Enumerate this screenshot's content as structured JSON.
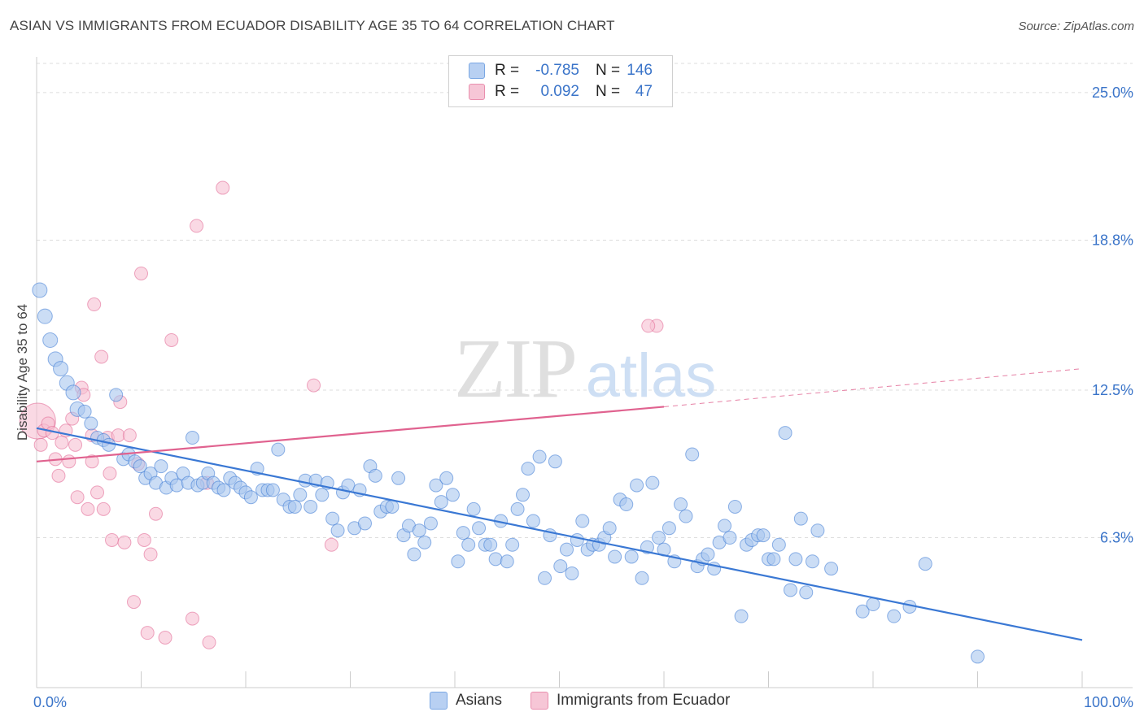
{
  "title": "ASIAN VS IMMIGRANTS FROM ECUADOR DISABILITY AGE 35 TO 64 CORRELATION CHART",
  "source": "Source: ZipAtlas.com",
  "watermark": {
    "zip": "ZIP",
    "atlas": "atlas"
  },
  "legend": {
    "r_label": "R =",
    "n_label": "N =",
    "rows": [
      {
        "name": "Asians",
        "r": "-0.785",
        "n": "146",
        "color": "#7aa7e3",
        "fill": "#b8d0f2"
      },
      {
        "name": "Immigrants from Ecuador",
        "r": "0.092",
        "n": "47",
        "color": "#e98fae",
        "fill": "#f6c6d6"
      }
    ]
  },
  "chart_data": {
    "type": "scatter",
    "title": "ASIAN VS IMMIGRANTS FROM ECUADOR DISABILITY AGE 35 TO 64 CORRELATION CHART",
    "xlabel": "",
    "ylabel": "Disability Age 35 to 64",
    "xlim": [
      0,
      100
    ],
    "ylim": [
      0,
      26.5
    ],
    "x_tick_labels": [
      {
        "value": 0,
        "label": "0.0%"
      },
      {
        "value": 100,
        "label": "100.0%"
      }
    ],
    "y_tick_labels": [
      {
        "value": 6.3,
        "label": "6.3%"
      },
      {
        "value": 12.5,
        "label": "12.5%"
      },
      {
        "value": 18.8,
        "label": "18.8%"
      },
      {
        "value": 25.0,
        "label": "25.0%"
      }
    ],
    "series": [
      {
        "name": "Asians",
        "color": "#3a78d4",
        "fill": "#a9c6ef",
        "trend": {
          "x": [
            0,
            100
          ],
          "y": [
            10.9,
            2.0
          ],
          "dashed_from": null
        },
        "points": [
          [
            0.3,
            16.7
          ],
          [
            0.8,
            15.6
          ],
          [
            1.3,
            14.6
          ],
          [
            1.8,
            13.8
          ],
          [
            2.3,
            13.4
          ],
          [
            2.9,
            12.8
          ],
          [
            3.5,
            12.4
          ],
          [
            3.9,
            11.7
          ],
          [
            4.6,
            11.6
          ],
          [
            5.2,
            11.1
          ],
          [
            5.8,
            10.5
          ],
          [
            6.4,
            10.4
          ],
          [
            6.9,
            10.2
          ],
          [
            7.6,
            12.3
          ],
          [
            8.3,
            9.6
          ],
          [
            8.8,
            9.8
          ],
          [
            9.4,
            9.5
          ],
          [
            9.9,
            9.3
          ],
          [
            10.4,
            8.8
          ],
          [
            10.9,
            9.0
          ],
          [
            11.4,
            8.6
          ],
          [
            11.9,
            9.3
          ],
          [
            12.4,
            8.4
          ],
          [
            12.9,
            8.8
          ],
          [
            13.4,
            8.5
          ],
          [
            14.0,
            9.0
          ],
          [
            14.5,
            8.6
          ],
          [
            14.9,
            10.5
          ],
          [
            15.4,
            8.5
          ],
          [
            15.9,
            8.6
          ],
          [
            16.4,
            9.0
          ],
          [
            16.9,
            8.6
          ],
          [
            17.4,
            8.4
          ],
          [
            17.9,
            8.3
          ],
          [
            18.5,
            8.8
          ],
          [
            19.0,
            8.6
          ],
          [
            19.5,
            8.4
          ],
          [
            20.0,
            8.2
          ],
          [
            20.5,
            8.0
          ],
          [
            21.1,
            9.2
          ],
          [
            21.6,
            8.3
          ],
          [
            22.1,
            8.3
          ],
          [
            22.6,
            8.3
          ],
          [
            23.1,
            10.0
          ],
          [
            23.6,
            7.9
          ],
          [
            24.2,
            7.6
          ],
          [
            24.7,
            7.6
          ],
          [
            25.2,
            8.1
          ],
          [
            25.7,
            8.7
          ],
          [
            26.2,
            7.6
          ],
          [
            26.7,
            8.7
          ],
          [
            27.3,
            8.1
          ],
          [
            27.8,
            8.6
          ],
          [
            28.3,
            7.1
          ],
          [
            28.8,
            6.6
          ],
          [
            29.3,
            8.2
          ],
          [
            29.8,
            8.5
          ],
          [
            30.4,
            6.7
          ],
          [
            30.9,
            8.3
          ],
          [
            31.4,
            6.9
          ],
          [
            31.9,
            9.3
          ],
          [
            32.4,
            8.9
          ],
          [
            32.9,
            7.4
          ],
          [
            33.5,
            7.6
          ],
          [
            34.0,
            7.6
          ],
          [
            34.6,
            8.8
          ],
          [
            35.1,
            6.4
          ],
          [
            35.6,
            6.8
          ],
          [
            36.1,
            5.6
          ],
          [
            36.6,
            6.6
          ],
          [
            37.1,
            6.1
          ],
          [
            37.7,
            6.9
          ],
          [
            38.2,
            8.5
          ],
          [
            38.7,
            7.8
          ],
          [
            39.2,
            8.8
          ],
          [
            39.8,
            8.1
          ],
          [
            40.3,
            5.3
          ],
          [
            40.8,
            6.5
          ],
          [
            41.3,
            6.0
          ],
          [
            41.8,
            7.5
          ],
          [
            42.3,
            6.7
          ],
          [
            42.9,
            6.0
          ],
          [
            43.4,
            6.0
          ],
          [
            43.9,
            5.4
          ],
          [
            44.4,
            7.0
          ],
          [
            45.0,
            5.3
          ],
          [
            45.5,
            6.0
          ],
          [
            46.0,
            7.5
          ],
          [
            46.5,
            8.1
          ],
          [
            47.0,
            9.2
          ],
          [
            47.5,
            7.0
          ],
          [
            48.1,
            9.7
          ],
          [
            48.6,
            4.6
          ],
          [
            49.1,
            6.4
          ],
          [
            49.6,
            9.5
          ],
          [
            50.1,
            5.1
          ],
          [
            50.7,
            5.8
          ],
          [
            51.2,
            4.8
          ],
          [
            51.7,
            6.2
          ],
          [
            52.2,
            7.0
          ],
          [
            52.7,
            5.8
          ],
          [
            53.2,
            6.0
          ],
          [
            53.8,
            6.0
          ],
          [
            54.3,
            6.3
          ],
          [
            54.8,
            6.7
          ],
          [
            55.3,
            5.5
          ],
          [
            55.8,
            7.9
          ],
          [
            56.4,
            7.7
          ],
          [
            56.9,
            5.5
          ],
          [
            57.4,
            8.5
          ],
          [
            57.9,
            4.6
          ],
          [
            58.4,
            5.9
          ],
          [
            58.9,
            8.6
          ],
          [
            59.5,
            6.3
          ],
          [
            60.0,
            5.8
          ],
          [
            60.5,
            6.7
          ],
          [
            61.0,
            5.3
          ],
          [
            61.6,
            7.7
          ],
          [
            62.1,
            7.2
          ],
          [
            62.7,
            9.8
          ],
          [
            63.2,
            5.1
          ],
          [
            63.7,
            5.4
          ],
          [
            64.2,
            5.6
          ],
          [
            64.8,
            5.0
          ],
          [
            65.3,
            6.1
          ],
          [
            65.8,
            6.8
          ],
          [
            66.3,
            6.3
          ],
          [
            66.8,
            7.6
          ],
          [
            67.4,
            3.0
          ],
          [
            67.9,
            6.0
          ],
          [
            68.4,
            6.2
          ],
          [
            69.0,
            6.4
          ],
          [
            69.5,
            6.4
          ],
          [
            70.0,
            5.4
          ],
          [
            70.5,
            5.4
          ],
          [
            71.0,
            6.0
          ],
          [
            71.6,
            10.7
          ],
          [
            72.1,
            4.1
          ],
          [
            72.6,
            5.4
          ],
          [
            73.1,
            7.1
          ],
          [
            73.6,
            4.0
          ],
          [
            74.2,
            5.3
          ],
          [
            74.7,
            6.6
          ],
          [
            76.0,
            5.0
          ],
          [
            79.0,
            3.2
          ],
          [
            80.0,
            3.5
          ],
          [
            82.0,
            3.0
          ],
          [
            83.5,
            3.4
          ],
          [
            85.0,
            5.2
          ],
          [
            90.0,
            1.3
          ]
        ],
        "sizes": [
          18,
          18,
          18,
          18,
          18,
          18,
          18,
          18,
          16,
          16,
          16,
          16,
          16,
          16,
          16,
          16,
          16,
          16,
          16,
          16,
          16,
          16,
          16,
          16,
          16,
          16,
          16,
          16,
          16,
          16,
          16,
          16,
          16,
          16,
          16,
          16,
          16,
          16,
          16,
          16,
          16,
          16,
          16,
          16,
          16,
          16,
          16,
          16,
          16,
          16,
          16,
          16,
          16,
          16,
          16,
          16,
          16,
          16,
          16,
          16,
          16,
          16,
          16,
          16,
          16,
          16,
          16,
          16,
          16,
          16,
          16,
          16,
          16,
          16,
          16,
          16,
          16,
          16,
          16,
          16,
          16,
          16,
          16,
          16,
          16,
          16,
          16,
          16,
          16,
          16,
          16,
          16,
          16,
          16,
          16,
          16,
          16,
          16,
          16,
          16,
          16,
          16,
          16,
          16,
          16,
          16,
          16,
          16,
          16,
          16,
          16,
          16,
          16,
          16,
          16,
          16,
          16,
          16,
          16,
          16,
          16,
          16,
          16,
          16,
          16,
          16,
          16,
          16,
          16,
          16,
          16,
          16,
          16,
          16,
          16,
          16,
          16,
          16,
          16,
          16,
          16,
          16,
          16,
          16,
          16,
          16
        ]
      },
      {
        "name": "Immigrants from Ecuador",
        "color": "#e0628f",
        "fill": "#f7bfd2",
        "trend": {
          "x": [
            0,
            60,
            100
          ],
          "y": [
            9.5,
            11.8,
            13.4
          ],
          "dashed_from": 60
        },
        "points": [
          [
            0.1,
            11.2
          ],
          [
            0.4,
            10.2
          ],
          [
            0.7,
            10.8
          ],
          [
            1.1,
            11.1
          ],
          [
            1.5,
            10.7
          ],
          [
            1.8,
            9.6
          ],
          [
            2.1,
            8.9
          ],
          [
            2.4,
            10.3
          ],
          [
            2.8,
            10.8
          ],
          [
            3.1,
            9.5
          ],
          [
            3.4,
            11.3
          ],
          [
            3.7,
            10.2
          ],
          [
            3.9,
            8.0
          ],
          [
            4.3,
            12.6
          ],
          [
            4.5,
            12.3
          ],
          [
            4.9,
            7.5
          ],
          [
            5.3,
            10.6
          ],
          [
            5.3,
            9.5
          ],
          [
            5.5,
            16.1
          ],
          [
            5.8,
            8.2
          ],
          [
            6.2,
            13.9
          ],
          [
            6.4,
            7.5
          ],
          [
            6.8,
            10.5
          ],
          [
            7.0,
            9.0
          ],
          [
            7.2,
            6.2
          ],
          [
            7.8,
            10.6
          ],
          [
            8.0,
            12.0
          ],
          [
            8.4,
            6.1
          ],
          [
            8.9,
            10.6
          ],
          [
            9.3,
            3.6
          ],
          [
            9.7,
            9.4
          ],
          [
            10.0,
            17.4
          ],
          [
            10.3,
            6.2
          ],
          [
            10.6,
            2.3
          ],
          [
            10.9,
            5.6
          ],
          [
            11.4,
            7.3
          ],
          [
            12.3,
            2.1
          ],
          [
            12.9,
            14.6
          ],
          [
            14.9,
            2.9
          ],
          [
            15.3,
            19.4
          ],
          [
            16.3,
            8.6
          ],
          [
            16.5,
            1.9
          ],
          [
            17.8,
            21.0
          ],
          [
            26.5,
            12.7
          ],
          [
            28.2,
            6.0
          ],
          [
            59.3,
            15.2
          ],
          [
            58.5,
            15.2
          ]
        ],
        "sizes": [
          44,
          16,
          16,
          16,
          16,
          16,
          16,
          16,
          16,
          16,
          16,
          16,
          16,
          16,
          16,
          16,
          16,
          16,
          16,
          16,
          16,
          16,
          16,
          16,
          16,
          16,
          16,
          16,
          16,
          16,
          16,
          16,
          16,
          16,
          16,
          16,
          16,
          16,
          16,
          16,
          16,
          16,
          16,
          16,
          16,
          16,
          0
        ]
      }
    ],
    "grid": true
  }
}
